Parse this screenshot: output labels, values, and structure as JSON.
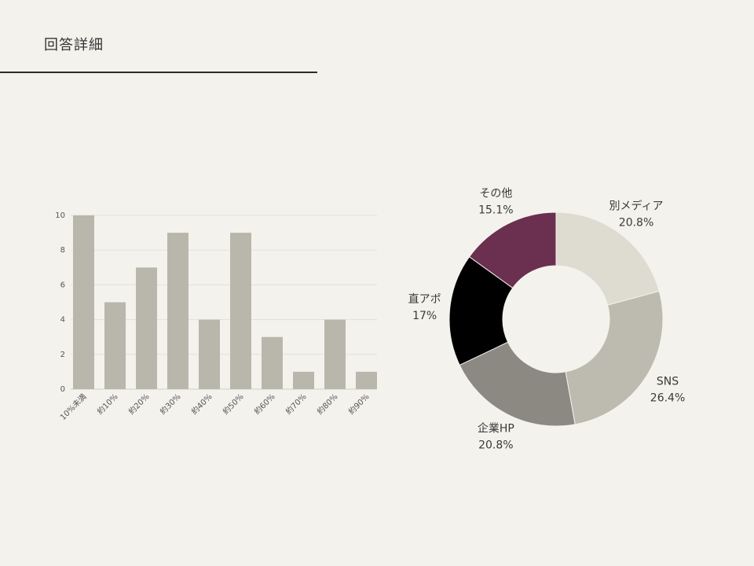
{
  "page": {
    "title": "回答詳細"
  },
  "colors": {
    "background": "#f4f2ed",
    "text": "#333333",
    "rule": "#2b2b2b"
  },
  "chart_data": [
    {
      "type": "bar",
      "categories": [
        "10%未満",
        "約10%",
        "約20%",
        "約30%",
        "約40%",
        "約50%",
        "約60%",
        "約70%",
        "約80%",
        "約90%"
      ],
      "values": [
        10,
        5,
        7,
        9,
        4,
        9,
        3,
        1,
        4,
        1
      ],
      "ylim": [
        0,
        10
      ],
      "yticks": [
        0,
        2,
        4,
        6,
        8,
        10
      ],
      "grid": true,
      "bar_color": "#b9b6ab",
      "grid_color": "#e3e0da",
      "baseline_color": "#d2cfc8"
    },
    {
      "type": "pie",
      "donut": true,
      "slices": [
        {
          "label": "別メディア",
          "value": 20.8,
          "value_label": "20.8%",
          "color": "#dedbd1"
        },
        {
          "label": "SNS",
          "value": 26.4,
          "value_label": "26.4%",
          "color": "#bdbab0"
        },
        {
          "label": "企業HP",
          "value": 20.8,
          "value_label": "20.8%",
          "color": "#8c8983"
        },
        {
          "label": "直アポ",
          "value": 17,
          "value_label": "17%",
          "color": "#000000"
        },
        {
          "label": "その他",
          "value": 15.1,
          "value_label": "15.1%",
          "color": "#6b2f4f"
        }
      ]
    }
  ]
}
